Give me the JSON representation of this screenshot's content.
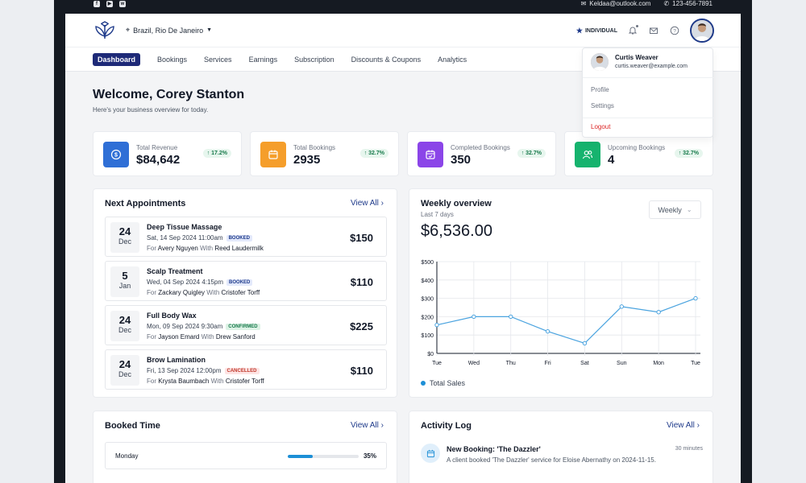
{
  "topbar": {
    "social_icons": [
      "facebook-icon",
      "youtube-icon",
      "whatsapp-icon"
    ],
    "email": "Keldaa@outlook.com",
    "phone": "123-456-7891"
  },
  "header": {
    "location": "Brazil, Rio De Janeiro",
    "account_type": "INDIVIDUAL"
  },
  "nav": {
    "items": [
      "Dashboard",
      "Bookings",
      "Services",
      "Earnings",
      "Subscription",
      "Discounts & Coupons",
      "Analytics"
    ]
  },
  "welcome": {
    "title": "Welcome, Corey Stanton",
    "subtitle": "Here's your business overview for today."
  },
  "stats": [
    {
      "label": "Total Revenue",
      "value": "$84,642",
      "change": "17.2%",
      "color": "#2f6fd6"
    },
    {
      "label": "Total Bookings",
      "value": "2935",
      "change": "32.7%",
      "color": "#f59e2b"
    },
    {
      "label": "Completed Bookings",
      "value": "350",
      "change": "32.7%",
      "color": "#8b45e8"
    },
    {
      "label": "Upcoming Bookings",
      "value": "4",
      "change": "32.7%",
      "color": "#16b36e"
    }
  ],
  "appointments": {
    "title": "Next Appointments",
    "view_all": "View All",
    "items": [
      {
        "day": "24",
        "month": "Dec",
        "service": "Deep Tissue Massage",
        "when": "Sat, 14 Sep 2024 11:00am",
        "status": "BOOKED",
        "for_label": "For",
        "client": "Avery Nguyen",
        "with_label": "With",
        "staff": "Reed Laudermilk",
        "price": "$150"
      },
      {
        "day": "5",
        "month": "Jan",
        "service": "Scalp Treatment",
        "when": "Wed, 04 Sep 2024 4:15pm",
        "status": "BOOKED",
        "for_label": "For",
        "client": "Zackary Quigley",
        "with_label": "With",
        "staff": "Cristofer Torff",
        "price": "$110"
      },
      {
        "day": "24",
        "month": "Dec",
        "service": "Full Body Wax",
        "when": "Mon, 09 Sep 2024 9:30am",
        "status": "CONFIRMED",
        "for_label": "For",
        "client": "Jayson Emard",
        "with_label": "With",
        "staff": "Drew Sanford",
        "price": "$225"
      },
      {
        "day": "24",
        "month": "Dec",
        "service": "Brow Lamination",
        "when": "Fri, 13 Sep 2024 12:00pm",
        "status": "CANCELLED",
        "for_label": "For",
        "client": "Krysta Baumbach",
        "with_label": "With",
        "staff": "Cristofer Torff",
        "price": "$110"
      }
    ]
  },
  "weekly": {
    "title": "Weekly overview",
    "subtitle": "Last 7 days",
    "value": "$6,536.00",
    "select": "Weekly"
  },
  "chart_data": {
    "type": "line",
    "categories": [
      "Tue",
      "Wed",
      "Thu",
      "Fri",
      "Sat",
      "Sun",
      "Mon",
      "Tue"
    ],
    "series": [
      {
        "name": "Total Sales",
        "values": [
          155,
          200,
          200,
          120,
          55,
          255,
          225,
          300
        ],
        "color": "#4aa3df"
      }
    ],
    "y_ticks": [
      "$0",
      "$100",
      "$200",
      "$300",
      "$400",
      "$500"
    ],
    "ylim": [
      0,
      500
    ],
    "grid": true,
    "legend": "bottom-left"
  },
  "booked_time": {
    "title": "Booked Time",
    "view_all": "View All",
    "rows": [
      {
        "day": "Monday",
        "percent": "35%",
        "fraction": 0.35
      }
    ]
  },
  "activity": {
    "title": "Activity Log",
    "view_all": "View All",
    "items": [
      {
        "title": "New Booking: 'The Dazzler'",
        "time": "30 minutes",
        "desc": "A client booked 'The Dazzler' service for Eloise Abernathy on 2024-11-15."
      }
    ]
  },
  "profile_menu": {
    "name": "Curtis Weaver",
    "email": "curtis.weaver@example.com",
    "items": [
      "Profile",
      "Settings"
    ],
    "logout": "Logout"
  }
}
